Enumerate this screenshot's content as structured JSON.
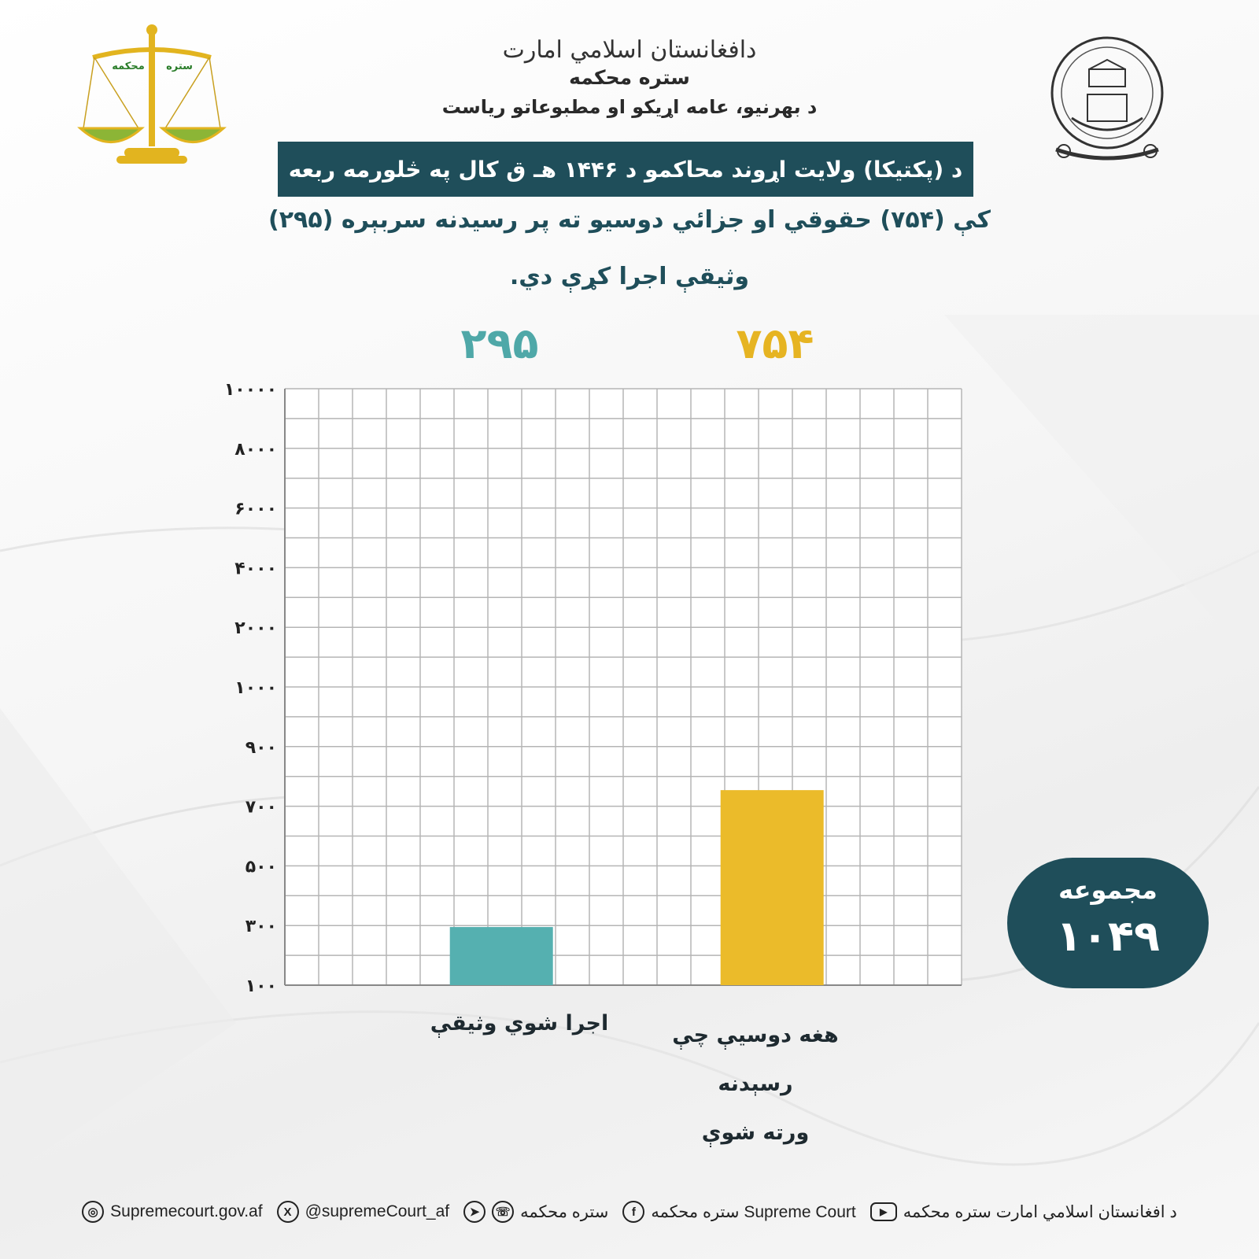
{
  "header": {
    "emirate_calligraphy": "دافغانستان اسلامي امارت",
    "court": "ستره محکمه",
    "department": "د بهرنیو، عامه اړیکو او مطبوعاتو ریاست",
    "left_logo_text_1": "ستره",
    "left_logo_text_2": "محکمه"
  },
  "title": {
    "banner": "د (پکتیکا) ولایت اړوند محاکمو د ۱۴۴۶ هـ ق کال په څلورمه ربعه",
    "line2": "کې (۷۵۴) حقوقي او جزائي دوسیو ته پر رسیدنه سربېره (۲۹۵)",
    "line3": "وثیقې اجرا کړې دي."
  },
  "chart_data": {
    "type": "bar",
    "categories": [
      "اجرا شوي وثیقې",
      "هغه دوسیې چې رسېدنه ورته شوې"
    ],
    "values": [
      295,
      754
    ],
    "value_labels": [
      "۲۹۵",
      "۷۵۴"
    ],
    "colors": [
      "#55b0b0",
      "#ebbb2a"
    ],
    "yticks": [
      "۱۰۰",
      "۳۰۰",
      "۵۰۰",
      "۷۰۰",
      "۹۰۰",
      "۱۰۰۰",
      "۲۰۰۰",
      "۴۰۰۰",
      "۶۰۰۰",
      "۸۰۰۰",
      "۱۰۰۰۰"
    ],
    "ytick_values": [
      100,
      300,
      500,
      700,
      900,
      1000,
      2000,
      4000,
      6000,
      8000,
      10000
    ],
    "grid": true
  },
  "category_labels": {
    "executed": "اجرا شوي وثیقې",
    "cases_line1": "هغه دوسیې چې رسېدنه",
    "cases_line2": "ورته شوې"
  },
  "total": {
    "label": "مجموعه",
    "value": "۱۰۴۹"
  },
  "footer": {
    "youtube": "د افغانستان اسلامي امارت ستره محکمه",
    "facebook": "ستره محکمه Supreme Court",
    "messaging": "ستره محکمه",
    "x_handle": "@supremeCourt_af",
    "website": "Supremecourt.gov.af",
    "icons": [
      "youtube-icon",
      "facebook-icon",
      "whatsapp-icon",
      "telegram-icon",
      "x-icon",
      "globe-icon"
    ]
  }
}
